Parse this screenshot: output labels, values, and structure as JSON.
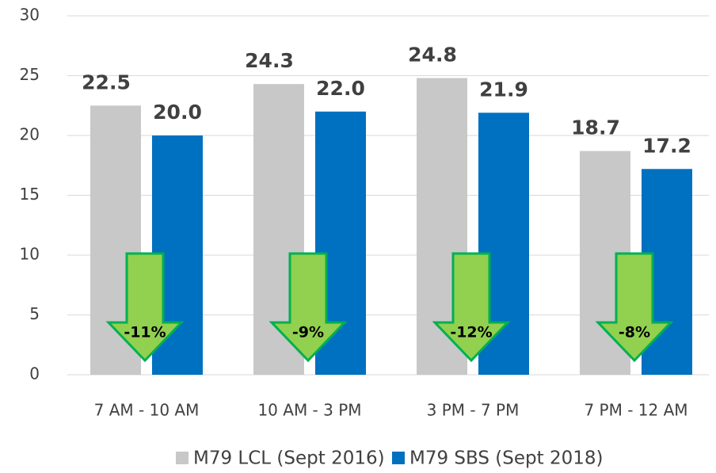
{
  "chart_data": {
    "type": "bar",
    "categories": [
      "7 AM - 10 AM",
      "10 AM - 3 PM",
      "3 PM - 7 PM",
      "7 PM - 12 AM"
    ],
    "series": [
      {
        "name": "M79 LCL (Sept 2016)",
        "color": "#c8c8c8",
        "values": [
          22.5,
          24.3,
          24.8,
          18.7
        ],
        "value_labels": [
          "22.5",
          "24.3",
          "24.8",
          "18.7"
        ]
      },
      {
        "name": "M79 SBS (Sept 2018)",
        "color": "#0070c0",
        "values": [
          20,
          22,
          21.9,
          17.2
        ],
        "value_labels": [
          "20.0",
          "22.0",
          "21.9",
          "17.2"
        ]
      }
    ],
    "annotations": [
      "-11%",
      "-9%",
      "-12%",
      "-8%"
    ],
    "ylim": [
      0,
      30
    ],
    "yticks": [
      0,
      5,
      10,
      15,
      20,
      25,
      30
    ],
    "grid": true,
    "legend": "bottom"
  }
}
